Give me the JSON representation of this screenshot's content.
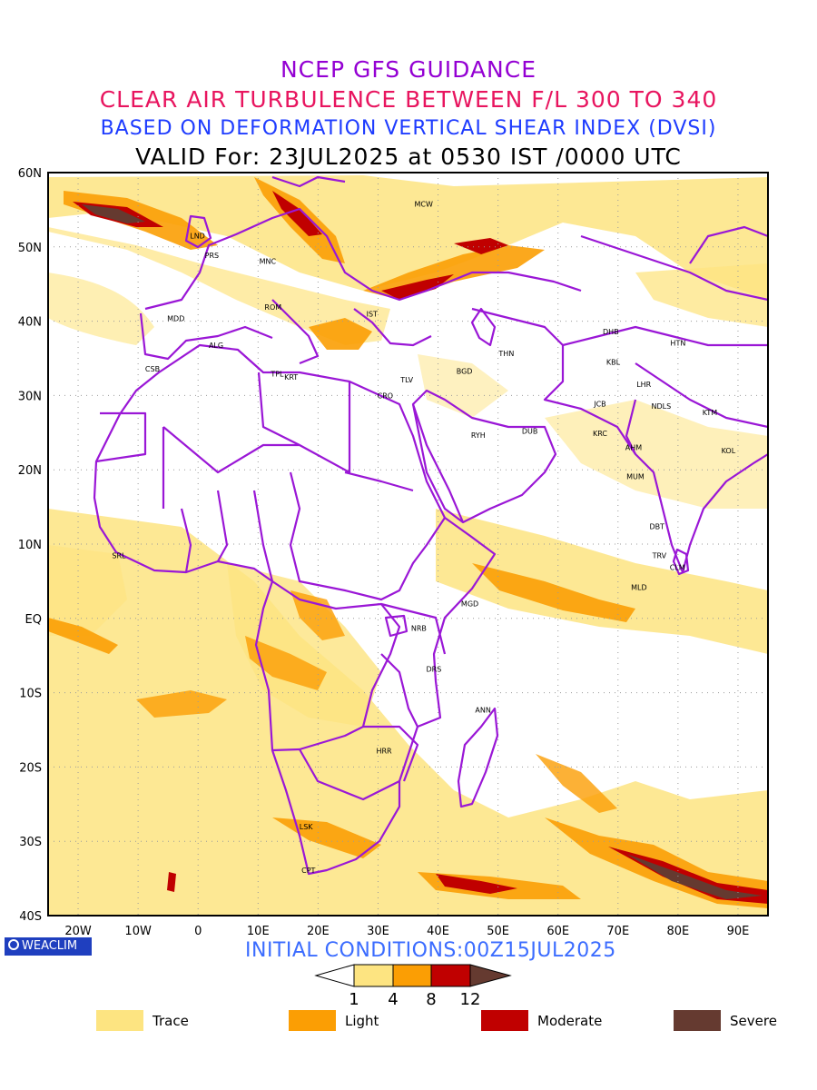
{
  "titles": {
    "line1": "NCEP GFS GUIDANCE",
    "line2": "CLEAR AIR TURBULENCE BETWEEN F/L 300 TO 340",
    "line3": "BASED ON DEFORMATION VERTICAL SHEAR INDEX (DVSI)",
    "line4": "VALID For: 23JUL2025 at 0530 IST /0000 UTC"
  },
  "axes": {
    "lat_labels": [
      "60N",
      "50N",
      "40N",
      "30N",
      "20N",
      "10N",
      "EQ",
      "10S",
      "20S",
      "30S",
      "40S"
    ],
    "lon_labels": [
      "20W",
      "10W",
      "0",
      "10E",
      "20E",
      "30E",
      "40E",
      "50E",
      "60E",
      "70E",
      "80E",
      "90E"
    ],
    "lat_range": [
      -40,
      60
    ],
    "lon_range": [
      -25,
      95
    ],
    "grid": "dotted"
  },
  "cities": [
    {
      "code": "MCW",
      "lon": 37.6,
      "lat": 55.8
    },
    {
      "code": "LND",
      "lon": -0.1,
      "lat": 51.5
    },
    {
      "code": "PRS",
      "lon": 2.3,
      "lat": 48.9
    },
    {
      "code": "MNC",
      "lon": 11.6,
      "lat": 48.1
    },
    {
      "code": "ROM",
      "lon": 12.5,
      "lat": 41.9
    },
    {
      "code": "MDD",
      "lon": -3.7,
      "lat": 40.4
    },
    {
      "code": "IST",
      "lon": 29.0,
      "lat": 41.0
    },
    {
      "code": "ALG",
      "lon": 3.0,
      "lat": 36.8
    },
    {
      "code": "CSB",
      "lon": -7.6,
      "lat": 33.6
    },
    {
      "code": "TPL",
      "lon": 13.2,
      "lat": 32.9
    },
    {
      "code": "KRT",
      "lon": 15.5,
      "lat": 32.5
    },
    {
      "code": "TLV",
      "lon": 34.8,
      "lat": 32.1
    },
    {
      "code": "CRO",
      "lon": 31.2,
      "lat": 30.0
    },
    {
      "code": "BGD",
      "lon": 44.4,
      "lat": 33.3
    },
    {
      "code": "THN",
      "lon": 51.4,
      "lat": 35.7
    },
    {
      "code": "DHB",
      "lon": 68.8,
      "lat": 38.6
    },
    {
      "code": "HTN",
      "lon": 80.0,
      "lat": 37.1
    },
    {
      "code": "KBL",
      "lon": 69.2,
      "lat": 34.5
    },
    {
      "code": "LHR",
      "lon": 74.3,
      "lat": 31.5
    },
    {
      "code": "JCB",
      "lon": 67.0,
      "lat": 28.9
    },
    {
      "code": "NDLS",
      "lon": 77.2,
      "lat": 28.6
    },
    {
      "code": "KTM",
      "lon": 85.3,
      "lat": 27.7
    },
    {
      "code": "RYH",
      "lon": 46.7,
      "lat": 24.7
    },
    {
      "code": "DUB",
      "lon": 55.3,
      "lat": 25.2
    },
    {
      "code": "KRC",
      "lon": 67.0,
      "lat": 24.9
    },
    {
      "code": "AHM",
      "lon": 72.6,
      "lat": 23.0
    },
    {
      "code": "KOL",
      "lon": 88.4,
      "lat": 22.6
    },
    {
      "code": "MUM",
      "lon": 72.9,
      "lat": 19.1
    },
    {
      "code": "DBT",
      "lon": 76.5,
      "lat": 12.4
    },
    {
      "code": "TRV",
      "lon": 76.9,
      "lat": 8.5
    },
    {
      "code": "CLM",
      "lon": 79.9,
      "lat": 6.9
    },
    {
      "code": "SRL",
      "lon": -13.2,
      "lat": 8.5
    },
    {
      "code": "MLD",
      "lon": 73.5,
      "lat": 4.2
    },
    {
      "code": "MGD",
      "lon": 45.3,
      "lat": 2.0
    },
    {
      "code": "NRB",
      "lon": 36.8,
      "lat": -1.3
    },
    {
      "code": "DRS",
      "lon": 39.3,
      "lat": -6.8
    },
    {
      "code": "ANN",
      "lon": 47.5,
      "lat": -12.3
    },
    {
      "code": "HRR",
      "lon": 31.0,
      "lat": -17.8
    },
    {
      "code": "LSK",
      "lon": 18.0,
      "lat": -28.0
    },
    {
      "code": "CPT",
      "lon": 18.4,
      "lat": -33.9
    }
  ],
  "colorbar": {
    "ticks": [
      "1",
      "4",
      "8",
      "12"
    ],
    "colors": {
      "trace": "#fde481",
      "light": "#fb9e04",
      "moderate": "#c00000",
      "severe": "#653a30",
      "outline": "#000000"
    }
  },
  "legend": [
    {
      "label": "Trace",
      "color": "#fde481"
    },
    {
      "label": "Light",
      "color": "#fb9e04"
    },
    {
      "label": "Moderate",
      "color": "#c00000"
    },
    {
      "label": "Severe",
      "color": "#653a30"
    }
  ],
  "colors": {
    "boundary": "#9a17d6",
    "title1": "#9400d3",
    "title2": "#e8155f",
    "title3": "#1e3cff",
    "init": "#3b6cff"
  },
  "footer": {
    "logo_text": "WEACLIM",
    "initial_conditions": "INITIAL CONDITIONS:00Z15JUL2025"
  }
}
